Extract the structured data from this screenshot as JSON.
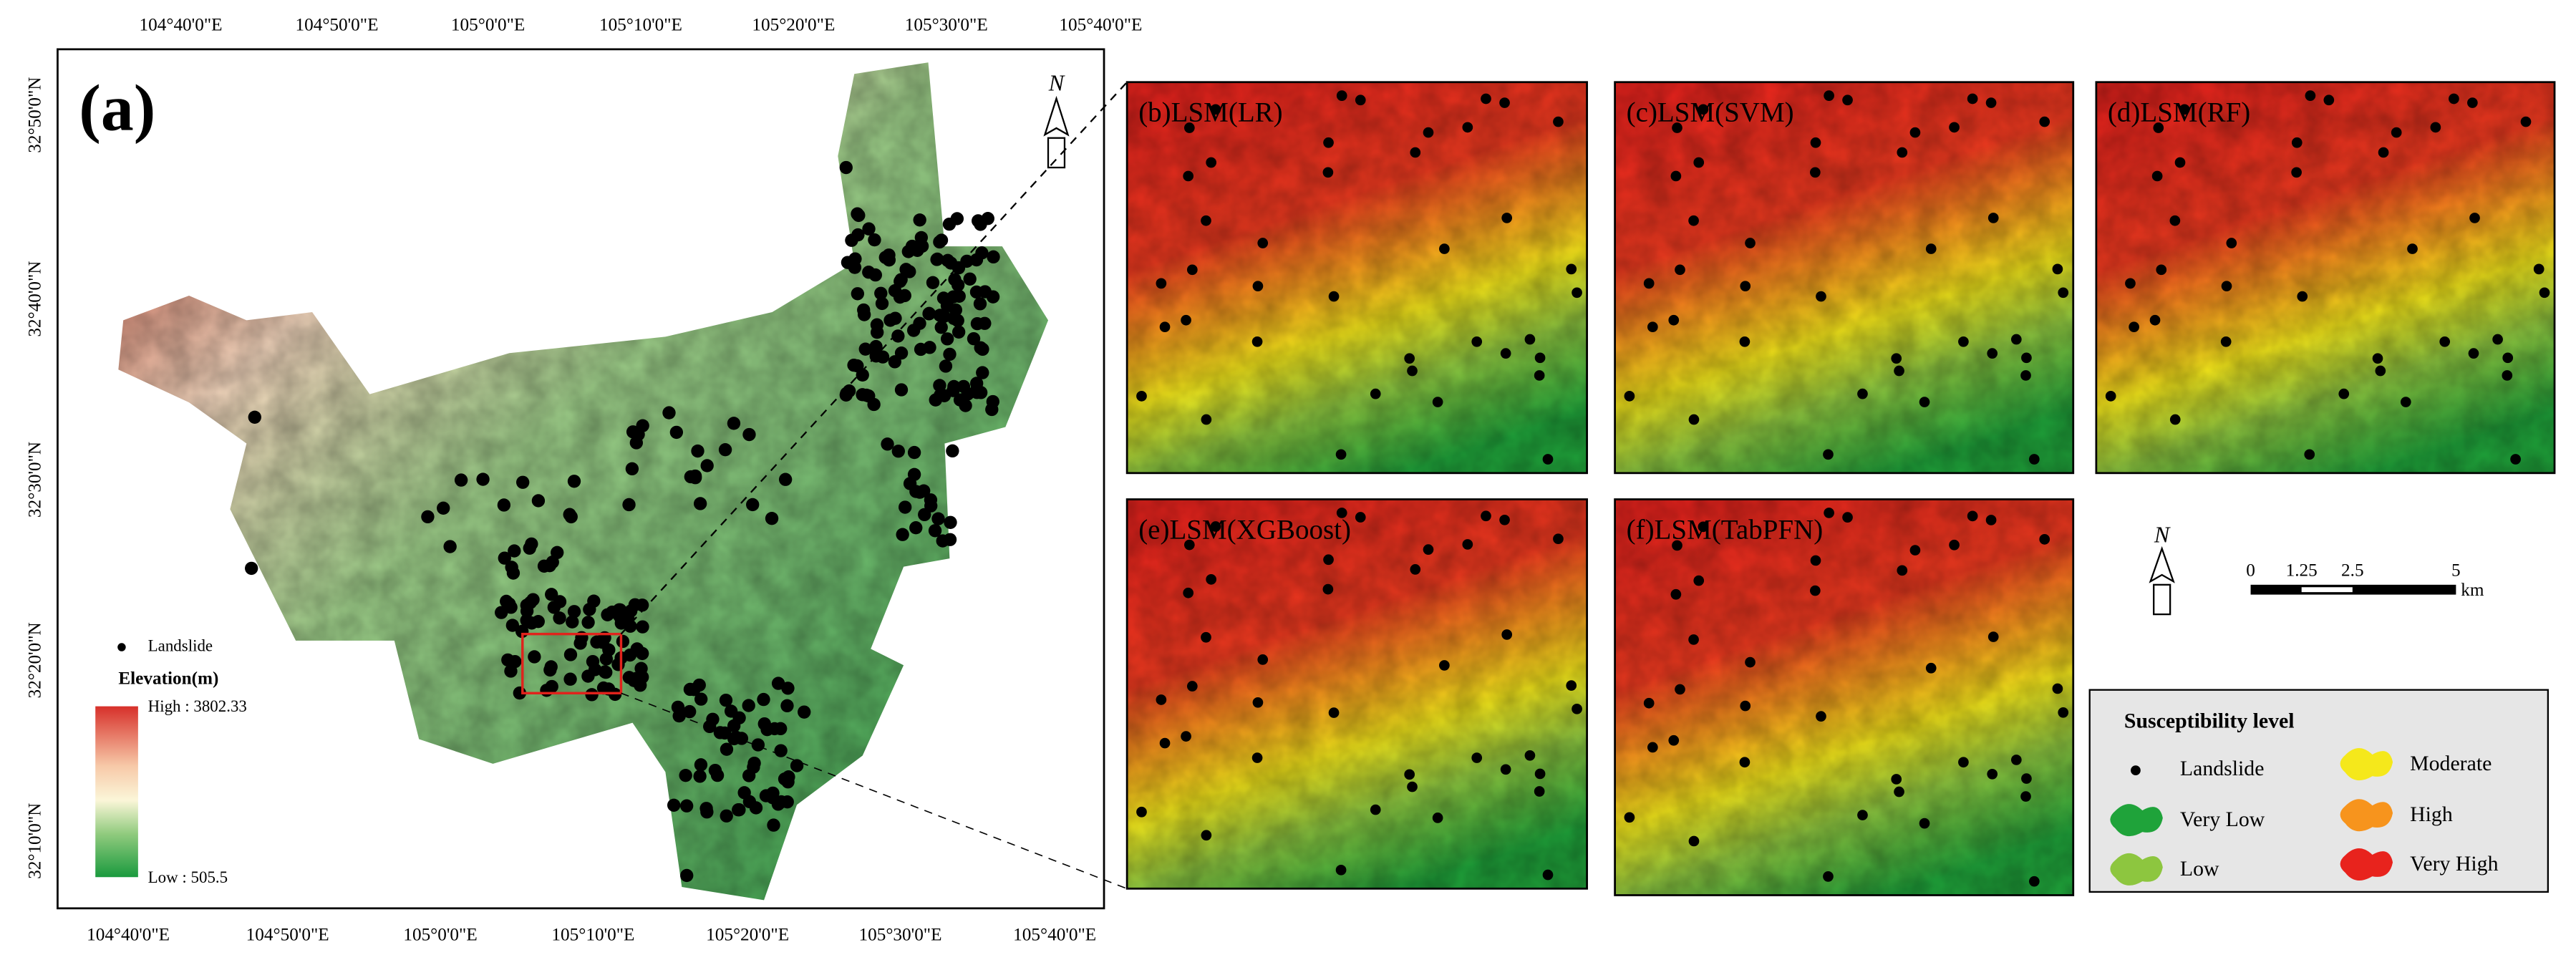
{
  "panel_a": {
    "label": "(a)",
    "top_ticks": [
      "104°40'0\"E",
      "104°50'0\"E",
      "105°0'0\"E",
      "105°10'0\"E",
      "105°20'0\"E",
      "105°30'0\"E",
      "105°40'0\"E"
    ],
    "bottom_ticks": [
      "104°40'0\"E",
      "104°50'0\"E",
      "105°0'0\"E",
      "105°10'0\"E",
      "105°20'0\"E",
      "105°30'0\"E",
      "105°40'0\"E"
    ],
    "left_ticks": [
      "32°50'0\"N",
      "32°40'0\"N",
      "32°30'0\"N",
      "32°20'0\"N",
      "32°10'0\"N"
    ],
    "north": "N",
    "legend": {
      "point": "Landslide",
      "elevation_title": "Elevation(m)",
      "high": "High : 3802.33",
      "low": "Low : 505.5"
    }
  },
  "panels": [
    {
      "label": "(b)LSM(LR)"
    },
    {
      "label": "(c)LSM(SVM)"
    },
    {
      "label": "(d)LSM(RF)"
    },
    {
      "label": "(e)LSM(XGBoost)"
    },
    {
      "label": "(f)LSM(TabPFN)"
    }
  ],
  "north": "N",
  "scale_bar": {
    "labels": [
      "0",
      "1.25",
      "2.5",
      "5"
    ],
    "unit": "km"
  },
  "legend": {
    "title": "Susceptibility level",
    "items": [
      "Landslide",
      "Very Low",
      "Low",
      "Moderate",
      "High",
      "Very High"
    ]
  }
}
